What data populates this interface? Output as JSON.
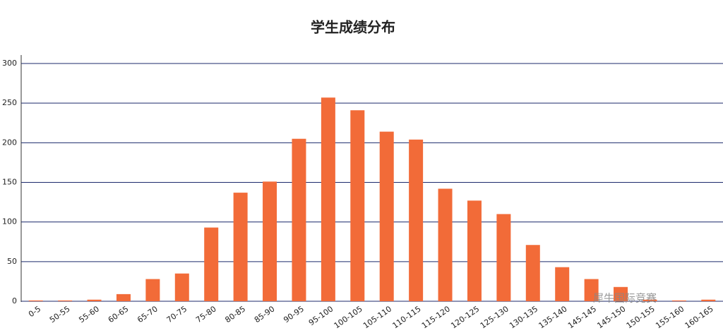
{
  "chart_data": {
    "type": "bar",
    "title": "学生成绩分布",
    "categories": [
      "0-5",
      "50-55",
      "55-60",
      "60-65",
      "65-70",
      "70-75",
      "75-80",
      "80-85",
      "85-90",
      "90-95",
      "95-100",
      "100-105",
      "105-110",
      "110-115",
      "115-120",
      "120-125",
      "125-130",
      "130-135",
      "135-140",
      "145-145",
      "145-150",
      "150-155",
      "155-160",
      "160-165"
    ],
    "values": [
      1,
      1,
      2,
      9,
      28,
      35,
      93,
      137,
      151,
      205,
      257,
      241,
      214,
      204,
      142,
      127,
      110,
      71,
      43,
      28,
      18,
      2,
      1,
      2
    ],
    "color": "#f26b38",
    "ylim": [
      0,
      300
    ],
    "yticks": [
      0,
      50,
      100,
      150,
      200,
      250,
      300
    ],
    "grid": true,
    "watermark": "犀牛国际竞赛"
  }
}
